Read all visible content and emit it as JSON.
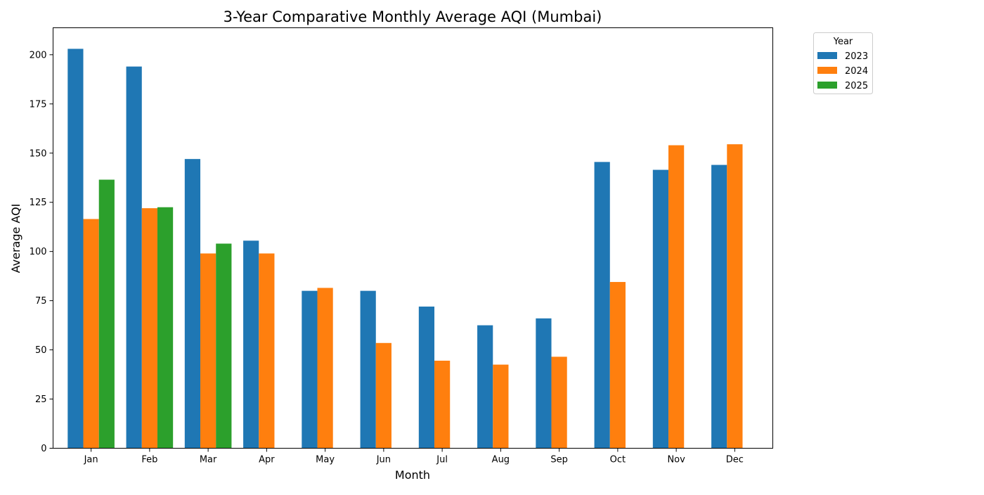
{
  "chart_data": {
    "type": "bar",
    "title": "3-Year Comparative Monthly Average AQI (Mumbai)",
    "xlabel": "Month",
    "ylabel": "Average AQI",
    "categories": [
      "Jan",
      "Feb",
      "Mar",
      "Apr",
      "May",
      "Jun",
      "Jul",
      "Aug",
      "Sep",
      "Oct",
      "Nov",
      "Dec"
    ],
    "series": [
      {
        "name": "2023",
        "color": "#1f77b4",
        "values": [
          203,
          194,
          147,
          105.5,
          80,
          80,
          72,
          62.5,
          66,
          145.5,
          141.5,
          144
        ]
      },
      {
        "name": "2024",
        "color": "#ff7f0e",
        "values": [
          116.5,
          122,
          99,
          99,
          81.5,
          53.5,
          44.5,
          42.5,
          46.5,
          84.5,
          154,
          154.5
        ]
      },
      {
        "name": "2025",
        "color": "#2ca02c",
        "values": [
          136.5,
          122.5,
          104,
          null,
          null,
          null,
          null,
          null,
          null,
          null,
          null,
          null
        ]
      }
    ],
    "ylim": [
      0,
      213.7
    ],
    "yticks": [
      0,
      25,
      50,
      75,
      100,
      125,
      150,
      175,
      200
    ],
    "ytick_labels": [
      "0",
      "25",
      "50",
      "75",
      "100",
      "125",
      "150",
      "175",
      "200"
    ],
    "grid": false,
    "legend": {
      "title": "Year",
      "placement": "outside-top-right"
    }
  }
}
